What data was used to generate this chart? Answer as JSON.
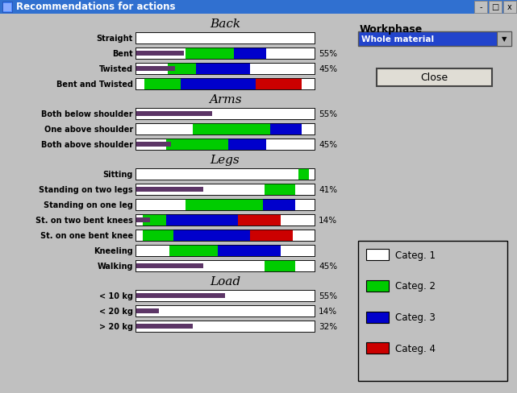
{
  "title": "Recommendations for actions",
  "bg_color": "#c0c0c0",
  "rows": [
    {
      "label": "Straight",
      "section": "Back",
      "c1": 1.0,
      "c2": 0.0,
      "c3": 0.0,
      "c4": 0.0,
      "dark": 0.0,
      "pct": ""
    },
    {
      "label": "Bent",
      "section": "Back",
      "c1": 0.28,
      "c2": 0.27,
      "c3": 0.18,
      "c4": 0.0,
      "dark": 0.27,
      "pct": "55%"
    },
    {
      "label": "Twisted",
      "section": "Back",
      "c1": 0.18,
      "c2": 0.16,
      "c3": 0.3,
      "c4": 0.0,
      "dark": 0.22,
      "pct": "45%"
    },
    {
      "label": "Bent and Twisted",
      "section": "Back",
      "c1": 0.05,
      "c2": 0.2,
      "c3": 0.42,
      "c4": 0.26,
      "dark": 0.0,
      "pct": ""
    },
    {
      "label": "Both below shoulder",
      "section": "Arms",
      "c1": 1.0,
      "c2": 0.0,
      "c3": 0.0,
      "c4": 0.0,
      "dark": 0.43,
      "pct": "55%"
    },
    {
      "label": "One above shoulder",
      "section": "Arms",
      "c1": 0.32,
      "c2": 0.43,
      "c3": 0.18,
      "c4": 0.0,
      "dark": 0.0,
      "pct": ""
    },
    {
      "label": "Both above shoulder",
      "section": "Arms",
      "c1": 0.17,
      "c2": 0.35,
      "c3": 0.21,
      "c4": 0.0,
      "dark": 0.2,
      "pct": "45%"
    },
    {
      "label": "Sitting",
      "section": "Legs",
      "c1": 0.91,
      "c2": 0.06,
      "c3": 0.0,
      "c4": 0.0,
      "dark": 0.0,
      "pct": ""
    },
    {
      "label": "Standing on two legs",
      "section": "Legs",
      "c1": 0.72,
      "c2": 0.17,
      "c3": 0.0,
      "c4": 0.0,
      "dark": 0.38,
      "pct": "41%"
    },
    {
      "label": "Standing on one leg",
      "section": "Legs",
      "c1": 0.28,
      "c2": 0.43,
      "c3": 0.18,
      "c4": 0.0,
      "dark": 0.0,
      "pct": ""
    },
    {
      "label": "St. on two bent knees",
      "section": "Legs",
      "c1": 0.04,
      "c2": 0.13,
      "c3": 0.4,
      "c4": 0.24,
      "dark": 0.08,
      "pct": "14%"
    },
    {
      "label": "St. on one bent knee",
      "section": "Legs",
      "c1": 0.04,
      "c2": 0.17,
      "c3": 0.43,
      "c4": 0.24,
      "dark": 0.0,
      "pct": ""
    },
    {
      "label": "Kneeling",
      "section": "Legs",
      "c1": 0.19,
      "c2": 0.27,
      "c3": 0.35,
      "c4": 0.0,
      "dark": 0.0,
      "pct": ""
    },
    {
      "label": "Walking",
      "section": "Legs",
      "c1": 0.72,
      "c2": 0.17,
      "c3": 0.0,
      "c4": 0.0,
      "dark": 0.38,
      "pct": "45%"
    },
    {
      "label": "< 10 kg",
      "section": "Load",
      "c1": 1.0,
      "c2": 0.0,
      "c3": 0.0,
      "c4": 0.0,
      "dark": 0.5,
      "pct": "55%"
    },
    {
      "label": "< 20 kg",
      "section": "Load",
      "c1": 1.0,
      "c2": 0.0,
      "c3": 0.0,
      "c4": 0.0,
      "dark": 0.13,
      "pct": "14%"
    },
    {
      "label": "> 20 kg",
      "section": "Load",
      "c1": 1.0,
      "c2": 0.0,
      "c3": 0.0,
      "c4": 0.0,
      "dark": 0.32,
      "pct": "32%"
    }
  ],
  "section_starts": [
    0,
    4,
    7,
    14
  ],
  "section_names": [
    "Back",
    "Arms",
    "Legs",
    "Load"
  ],
  "cat_colors": [
    "#ffffff",
    "#00cc00",
    "#0000cc",
    "#cc0000"
  ],
  "dark_color": "#5c3566",
  "cat_labels": [
    "Categ. 1",
    "Categ. 2",
    "Categ. 3",
    "Categ. 4"
  ],
  "workphase_label": "Workphase",
  "workphase_value": "Whole material",
  "close_button": "Close",
  "window_title": "Recommendations for actions"
}
